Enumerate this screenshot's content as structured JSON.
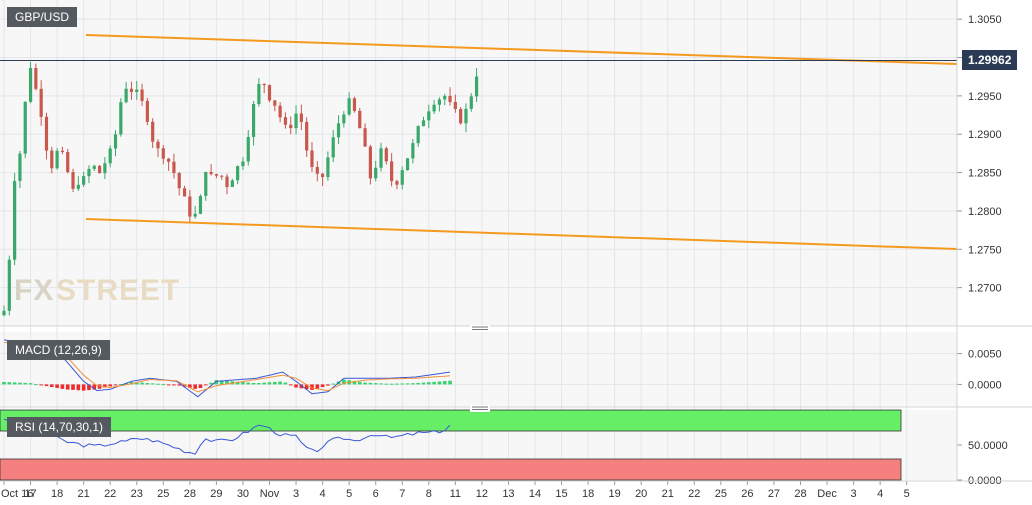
{
  "symbol": "GBP/USD",
  "current_price": "1.29962",
  "watermark": {
    "part1": "FX",
    "part2": "STREET"
  },
  "colors": {
    "up": "#3aa86b",
    "down": "#c8584b",
    "trend": "#f39a1f",
    "macd_line": "#3b57d6",
    "signal_line": "#f0913a",
    "hist_pos": "#38d16b",
    "hist_neg": "#ee2a2a",
    "rsi_line": "#3b57d6",
    "rsi_overbought": "#66ee66",
    "rsi_oversold": "#f48080",
    "badge": "#2b3a55"
  },
  "chart_data": [
    {
      "type": "candlestick",
      "title": "GBP/USD",
      "y_ticks": [
        "1.3050",
        "1.3000",
        "1.2950",
        "1.2900",
        "1.2850",
        "1.2800",
        "1.2750",
        "1.2700"
      ],
      "ylim": [
        1.265,
        1.3075
      ],
      "x_ticks": [
        "Oct 16",
        "17",
        "18",
        "21",
        "22",
        "23",
        "25",
        "28",
        "29",
        "30",
        "Nov",
        "3",
        "4",
        "5",
        "6",
        "7",
        "8",
        "11",
        "12",
        "13",
        "14",
        "15",
        "18",
        "19",
        "20",
        "21",
        "22",
        "25",
        "26",
        "27",
        "28",
        "Dec",
        "3",
        "4",
        "5"
      ],
      "x_tick_indices": [
        0,
        1,
        2,
        3,
        4,
        5,
        6,
        7,
        8,
        9,
        10,
        11,
        12,
        13,
        14,
        15,
        16,
        17,
        18,
        19,
        20,
        21,
        22,
        23,
        24,
        25,
        26,
        27,
        28,
        29,
        30,
        31,
        32,
        33,
        34
      ],
      "current_price_line": 1.29962,
      "close_anchors": [
        [
          0.0,
          1.267
        ],
        [
          0.2,
          1.274
        ],
        [
          0.35,
          1.284
        ],
        [
          0.55,
          1.286
        ],
        [
          0.8,
          1.294
        ],
        [
          1.0,
          1.299
        ],
        [
          1.15,
          1.296
        ],
        [
          1.3,
          1.2955
        ],
        [
          1.55,
          1.289
        ],
        [
          1.8,
          1.286
        ],
        [
          2.05,
          1.288
        ],
        [
          2.35,
          1.286
        ],
        [
          2.55,
          1.282
        ],
        [
          2.75,
          1.284
        ],
        [
          3.0,
          1.284
        ],
        [
          3.3,
          1.286
        ],
        [
          3.6,
          1.285
        ],
        [
          3.9,
          1.287
        ],
        [
          4.1,
          1.288
        ],
        [
          4.3,
          1.292
        ],
        [
          4.5,
          1.2965
        ],
        [
          4.75,
          1.296
        ],
        [
          5.05,
          1.295
        ],
        [
          5.35,
          1.293
        ],
        [
          5.7,
          1.288
        ],
        [
          6.0,
          1.2875
        ],
        [
          6.3,
          1.286
        ],
        [
          6.6,
          1.283
        ],
        [
          6.9,
          1.2805
        ],
        [
          7.1,
          1.279
        ],
        [
          7.35,
          1.28
        ],
        [
          7.55,
          1.286
        ],
        [
          7.85,
          1.284
        ],
        [
          8.1,
          1.285
        ],
        [
          8.4,
          1.2835
        ],
        [
          8.7,
          1.285
        ],
        [
          9.0,
          1.287
        ],
        [
          9.3,
          1.292
        ],
        [
          9.55,
          1.296
        ],
        [
          9.75,
          1.297
        ],
        [
          10.0,
          1.295
        ],
        [
          10.3,
          1.2935
        ],
        [
          10.55,
          1.2905
        ],
        [
          10.85,
          1.2915
        ],
        [
          11.1,
          1.2935
        ],
        [
          11.4,
          1.288
        ],
        [
          11.7,
          1.284
        ],
        [
          12.0,
          1.2845
        ],
        [
          12.25,
          1.2875
        ],
        [
          12.55,
          1.291
        ],
        [
          12.75,
          1.293
        ],
        [
          13.0,
          1.294
        ],
        [
          13.25,
          1.2925
        ],
        [
          13.55,
          1.289
        ],
        [
          13.75,
          1.284
        ],
        [
          14.0,
          1.286
        ],
        [
          14.25,
          1.288
        ],
        [
          14.55,
          1.284
        ],
        [
          14.8,
          1.284
        ],
        [
          15.1,
          1.2865
        ],
        [
          15.35,
          1.288
        ],
        [
          15.65,
          1.291
        ],
        [
          15.9,
          1.293
        ],
        [
          16.2,
          1.2945
        ],
        [
          16.6,
          1.295
        ],
        [
          16.9,
          1.293
        ],
        [
          17.2,
          1.292
        ],
        [
          17.5,
          1.2935
        ],
        [
          17.7,
          1.297
        ],
        [
          17.9,
          1.299
        ]
      ]
    },
    {
      "type": "line",
      "title": "MACD (12,26,9)",
      "y_ticks": [
        "0.0050",
        "0.0000"
      ],
      "ylim": [
        -0.0035,
        0.0085
      ],
      "series": [
        {
          "name": "MACD",
          "anchors": [
            [
              0.0,
              0.0072
            ],
            [
              1.0,
              0.0068
            ],
            [
              2.3,
              0.004
            ],
            [
              3.0,
              0.0005
            ],
            [
              3.5,
              -0.001
            ],
            [
              4.0,
              -0.0008
            ],
            [
              4.8,
              0.0005
            ],
            [
              5.5,
              0.001
            ],
            [
              6.5,
              0.0005
            ],
            [
              7.3,
              -0.002
            ],
            [
              8.0,
              0.0005
            ],
            [
              9.5,
              0.001
            ],
            [
              10.5,
              0.002
            ],
            [
              11.0,
              0.0005
            ],
            [
              11.6,
              -0.0015
            ],
            [
              12.2,
              -0.0012
            ],
            [
              12.8,
              0.001
            ],
            [
              13.6,
              0.001
            ],
            [
              14.5,
              0.001
            ],
            [
              15.5,
              0.0012
            ],
            [
              16.8,
              0.002
            ]
          ]
        },
        {
          "name": "Signal",
          "anchors": [
            [
              0.0,
              0.0068
            ],
            [
              1.0,
              0.0066
            ],
            [
              2.3,
              0.0048
            ],
            [
              3.0,
              0.0015
            ],
            [
              3.5,
              -0.0002
            ],
            [
              4.0,
              -0.0005
            ],
            [
              4.8,
              0.0001
            ],
            [
              5.5,
              0.0008
            ],
            [
              6.5,
              0.0006
            ],
            [
              7.3,
              -0.0012
            ],
            [
              8.0,
              -0.0002
            ],
            [
              9.5,
              0.0008
            ],
            [
              10.5,
              0.0015
            ],
            [
              11.0,
              0.001
            ],
            [
              11.6,
              -0.0006
            ],
            [
              12.2,
              -0.001
            ],
            [
              12.8,
              0.0002
            ],
            [
              13.6,
              0.0007
            ],
            [
              14.5,
              0.0009
            ],
            [
              15.5,
              0.001
            ],
            [
              16.8,
              0.0014
            ]
          ]
        }
      ]
    },
    {
      "type": "line",
      "title": "RSI (14,70,30,1)",
      "y_ticks": [
        "50.0000",
        "0.0000"
      ],
      "ylim": [
        0,
        100
      ],
      "overbought": 70,
      "oversold": 30,
      "series": [
        {
          "name": "RSI",
          "anchors": [
            [
              0.0,
              88
            ],
            [
              0.8,
              80
            ],
            [
              1.5,
              67
            ],
            [
              2.3,
              55
            ],
            [
              3.0,
              50
            ],
            [
              3.5,
              48
            ],
            [
              4.0,
              52
            ],
            [
              4.6,
              55
            ],
            [
              5.0,
              60
            ],
            [
              5.6,
              57
            ],
            [
              6.2,
              50
            ],
            [
              6.8,
              42
            ],
            [
              7.2,
              38
            ],
            [
              7.5,
              60
            ],
            [
              8.0,
              55
            ],
            [
              8.6,
              58
            ],
            [
              9.2,
              70
            ],
            [
              9.7,
              80
            ],
            [
              10.0,
              73
            ],
            [
              10.5,
              64
            ],
            [
              11.0,
              62
            ],
            [
              11.4,
              44
            ],
            [
              11.7,
              40
            ],
            [
              12.0,
              48
            ],
            [
              12.4,
              57
            ],
            [
              12.8,
              60
            ],
            [
              13.2,
              56
            ],
            [
              13.6,
              62
            ],
            [
              14.0,
              66
            ],
            [
              14.5,
              60
            ],
            [
              15.0,
              63
            ],
            [
              15.6,
              67
            ],
            [
              16.2,
              68
            ],
            [
              16.6,
              72
            ],
            [
              16.9,
              82
            ]
          ]
        }
      ]
    }
  ]
}
